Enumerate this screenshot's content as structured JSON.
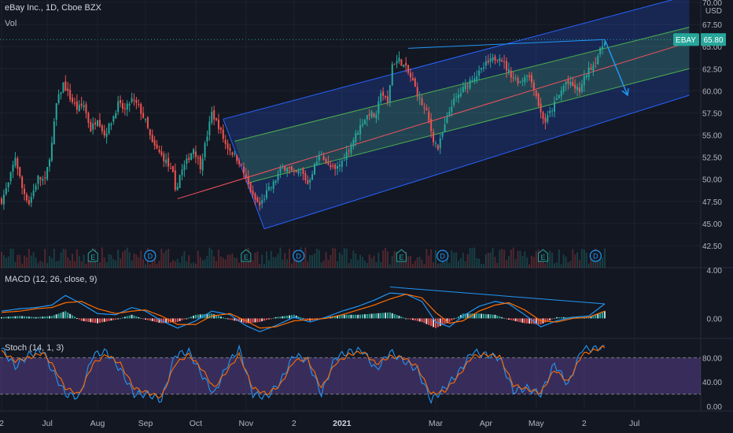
{
  "header": {
    "title": "eBay Inc., 1D, Cboe BZX",
    "vol_label": "Vol"
  },
  "price_axis": {
    "currency": "USD"
  },
  "last_price": {
    "symbol": "EBAY",
    "value": "65.80",
    "level": 65.8
  },
  "colors": {
    "background": "#131722",
    "up": "#26a69a",
    "down": "#ef5350",
    "grid": "#1e222d",
    "axis_text": "#b2b5be",
    "channel_blue": "#2962ff",
    "channel_green": "#4caf50",
    "channel_mid": "#f7525f",
    "macd_line": "#2196f3",
    "signal_line": "#ff6d00",
    "stoch_fill": "#7e57c2",
    "arrow": "#2196f3"
  },
  "markers": {
    "earnings": "E",
    "dividend": "D"
  },
  "chart_data": [
    {
      "type": "candlestick",
      "name": "price",
      "ylim": [
        41.5,
        70.5
      ],
      "y_ticks": [
        "42.50",
        "45.00",
        "47.50",
        "50.00",
        "52.50",
        "55.00",
        "57.50",
        "60.00",
        "62.50",
        "65.00",
        "67.50",
        "70.00"
      ],
      "x_ticks": [
        "2",
        "Jul",
        "Aug",
        "Sep",
        "Oct",
        "Nov",
        "2",
        "2021",
        "Mar",
        "Apr",
        "May",
        "2",
        "Jul"
      ],
      "x_tick_bold": [
        false,
        false,
        false,
        false,
        false,
        false,
        false,
        true,
        false,
        false,
        false,
        false,
        false
      ],
      "x_tick_index": [
        0,
        20,
        42,
        63,
        85,
        107,
        128,
        149,
        190,
        212,
        234,
        255,
        277
      ],
      "bar_count": 302,
      "anchors": [
        [
          0,
          47.6
        ],
        [
          3,
          49.5
        ],
        [
          6,
          52.5
        ],
        [
          9,
          49.0
        ],
        [
          12,
          47.3
        ],
        [
          16,
          50.2
        ],
        [
          19,
          49.8
        ],
        [
          22,
          54.0
        ],
        [
          24,
          58.5
        ],
        [
          27,
          60.8
        ],
        [
          30,
          59.2
        ],
        [
          33,
          58.0
        ],
        [
          36,
          58.4
        ],
        [
          39,
          55.6
        ],
        [
          42,
          57.0
        ],
        [
          45,
          55.0
        ],
        [
          48,
          56.5
        ],
        [
          51,
          58.5
        ],
        [
          54,
          57.8
        ],
        [
          57,
          59.0
        ],
        [
          60,
          58.2
        ],
        [
          63,
          56.5
        ],
        [
          66,
          54.0
        ],
        [
          69,
          53.0
        ],
        [
          72,
          52.0
        ],
        [
          75,
          50.5
        ],
        [
          76,
          48.5
        ],
        [
          78,
          50.5
        ],
        [
          81,
          52.0
        ],
        [
          84,
          53.5
        ],
        [
          87,
          51.5
        ],
        [
          90,
          55.0
        ],
        [
          92,
          57.5
        ],
        [
          95,
          56.0
        ],
        [
          98,
          54.0
        ],
        [
          101,
          53.0
        ],
        [
          104,
          52.0
        ],
        [
          107,
          50.0
        ],
        [
          110,
          48.0
        ],
        [
          113,
          47.0
        ],
        [
          116,
          48.5
        ],
        [
          119,
          49.5
        ],
        [
          122,
          51.0
        ],
        [
          125,
          51.5
        ],
        [
          128,
          50.5
        ],
        [
          131,
          51.0
        ],
        [
          134,
          49.5
        ],
        [
          137,
          51.5
        ],
        [
          140,
          53.0
        ],
        [
          143,
          51.5
        ],
        [
          146,
          51.0
        ],
        [
          149,
          52.0
        ],
        [
          152,
          53.5
        ],
        [
          155,
          55.0
        ],
        [
          158,
          56.5
        ],
        [
          161,
          57.5
        ],
        [
          164,
          57.0
        ],
        [
          166,
          60.0
        ],
        [
          169,
          58.5
        ],
        [
          171,
          63.0
        ],
        [
          174,
          63.5
        ],
        [
          177,
          62.5
        ],
        [
          180,
          61.0
        ],
        [
          183,
          59.0
        ],
        [
          186,
          57.5
        ],
        [
          189,
          54.5
        ],
        [
          191,
          53.5
        ],
        [
          194,
          56.0
        ],
        [
          197,
          58.5
        ],
        [
          200,
          59.5
        ],
        [
          203,
          60.5
        ],
        [
          206,
          61.5
        ],
        [
          209,
          62.0
        ],
        [
          212,
          63.0
        ],
        [
          215,
          63.5
        ],
        [
          218,
          64.0
        ],
        [
          221,
          62.5
        ],
        [
          224,
          61.5
        ],
        [
          227,
          61.0
        ],
        [
          230,
          62.0
        ],
        [
          233,
          60.5
        ],
        [
          236,
          57.5
        ],
        [
          238,
          56.5
        ],
        [
          241,
          58.0
        ],
        [
          244,
          59.5
        ],
        [
          247,
          61.0
        ],
        [
          250,
          60.5
        ],
        [
          253,
          60.0
        ],
        [
          256,
          62.0
        ],
        [
          259,
          63.0
        ],
        [
          262,
          64.5
        ],
        [
          264,
          65.8
        ]
      ],
      "channel_outer_upper": [
        [
          97,
          56.8
        ],
        [
          301,
          70.8
        ]
      ],
      "channel_outer_lower": [
        [
          115,
          44.4
        ],
        [
          301,
          59.5
        ]
      ],
      "channel_inner_upper": [
        [
          102,
          54.3
        ],
        [
          301,
          67.2
        ]
      ],
      "channel_inner_lower": [
        [
          108,
          49.6
        ],
        [
          301,
          62.5
        ]
      ],
      "channel_mid": [
        [
          77,
          47.8
        ],
        [
          301,
          65.5
        ]
      ],
      "trend_line": [
        [
          178,
          64.8
        ],
        [
          264,
          65.8
        ]
      ],
      "arrow": [
        [
          264,
          65.8
        ],
        [
          274,
          59.5
        ]
      ],
      "earnings_x": [
        40,
        107,
        175,
        237
      ],
      "dividend_x": [
        65,
        130,
        193,
        260
      ]
    },
    {
      "type": "line",
      "name": "MACD (12, 26, close, 9)",
      "ylim": [
        -1.6,
        4.0
      ],
      "y_ticks": [
        "4.00",
        "0.00"
      ],
      "macd": [
        [
          0,
          0.6
        ],
        [
          8,
          0.8
        ],
        [
          15,
          0.9
        ],
        [
          22,
          1.1
        ],
        [
          28,
          1.9
        ],
        [
          35,
          1.2
        ],
        [
          42,
          0.4
        ],
        [
          50,
          0.3
        ],
        [
          57,
          0.9
        ],
        [
          63,
          0.6
        ],
        [
          70,
          -0.2
        ],
        [
          77,
          -0.8
        ],
        [
          85,
          -0.2
        ],
        [
          92,
          0.6
        ],
        [
          100,
          0.3
        ],
        [
          107,
          -0.6
        ],
        [
          113,
          -1.1
        ],
        [
          120,
          -0.6
        ],
        [
          128,
          0.1
        ],
        [
          135,
          -0.3
        ],
        [
          142,
          0.1
        ],
        [
          149,
          0.6
        ],
        [
          156,
          1.0
        ],
        [
          163,
          1.5
        ],
        [
          170,
          2.1
        ],
        [
          177,
          2.0
        ],
        [
          184,
          1.4
        ],
        [
          190,
          -0.3
        ],
        [
          196,
          -0.7
        ],
        [
          202,
          0.2
        ],
        [
          209,
          1.0
        ],
        [
          216,
          1.4
        ],
        [
          222,
          1.2
        ],
        [
          229,
          0.3
        ],
        [
          236,
          -0.7
        ],
        [
          243,
          -0.2
        ],
        [
          250,
          0.1
        ],
        [
          257,
          0.2
        ],
        [
          264,
          1.2
        ]
      ],
      "signal": [
        [
          0,
          0.5
        ],
        [
          8,
          0.6
        ],
        [
          15,
          0.8
        ],
        [
          22,
          0.9
        ],
        [
          28,
          1.3
        ],
        [
          35,
          1.4
        ],
        [
          42,
          0.8
        ],
        [
          50,
          0.4
        ],
        [
          57,
          0.6
        ],
        [
          63,
          0.7
        ],
        [
          70,
          0.2
        ],
        [
          77,
          -0.5
        ],
        [
          85,
          -0.5
        ],
        [
          92,
          0.2
        ],
        [
          100,
          0.4
        ],
        [
          107,
          -0.2
        ],
        [
          113,
          -0.8
        ],
        [
          120,
          -0.7
        ],
        [
          128,
          -0.2
        ],
        [
          135,
          -0.1
        ],
        [
          142,
          0.0
        ],
        [
          149,
          0.3
        ],
        [
          156,
          0.7
        ],
        [
          163,
          1.1
        ],
        [
          170,
          1.6
        ],
        [
          177,
          2.0
        ],
        [
          184,
          1.7
        ],
        [
          190,
          0.5
        ],
        [
          196,
          -0.4
        ],
        [
          202,
          -0.2
        ],
        [
          209,
          0.6
        ],
        [
          216,
          1.1
        ],
        [
          222,
          1.3
        ],
        [
          229,
          0.7
        ],
        [
          236,
          -0.2
        ],
        [
          243,
          -0.3
        ],
        [
          250,
          0.0
        ],
        [
          257,
          0.1
        ],
        [
          264,
          0.6
        ]
      ],
      "divergence_line": [
        [
          170,
          2.6
        ],
        [
          264,
          1.2
        ]
      ]
    },
    {
      "type": "line",
      "name": "Stoch (14, 1, 3)",
      "ylim": [
        -8,
        110
      ],
      "y_ticks": [
        "80.00",
        "40.00",
        "0.00"
      ],
      "bands": [
        20,
        80
      ],
      "k": [
        [
          0,
          95
        ],
        [
          6,
          65
        ],
        [
          12,
          85
        ],
        [
          18,
          92
        ],
        [
          22,
          60
        ],
        [
          28,
          20
        ],
        [
          34,
          15
        ],
        [
          40,
          85
        ],
        [
          46,
          90
        ],
        [
          52,
          60
        ],
        [
          58,
          20
        ],
        [
          64,
          20
        ],
        [
          70,
          10
        ],
        [
          76,
          85
        ],
        [
          82,
          90
        ],
        [
          88,
          50
        ],
        [
          93,
          20
        ],
        [
          99,
          70
        ],
        [
          104,
          95
        ],
        [
          110,
          20
        ],
        [
          116,
          15
        ],
        [
          122,
          40
        ],
        [
          128,
          85
        ],
        [
          134,
          75
        ],
        [
          140,
          20
        ],
        [
          146,
          80
        ],
        [
          152,
          90
        ],
        [
          158,
          92
        ],
        [
          164,
          60
        ],
        [
          170,
          90
        ],
        [
          176,
          75
        ],
        [
          182,
          60
        ],
        [
          188,
          10
        ],
        [
          194,
          30
        ],
        [
          200,
          55
        ],
        [
          206,
          90
        ],
        [
          212,
          85
        ],
        [
          218,
          80
        ],
        [
          224,
          25
        ],
        [
          230,
          30
        ],
        [
          236,
          20
        ],
        [
          242,
          70
        ],
        [
          248,
          35
        ],
        [
          254,
          95
        ],
        [
          260,
          95
        ],
        [
          264,
          100
        ]
      ],
      "d": [
        [
          0,
          90
        ],
        [
          6,
          75
        ],
        [
          12,
          80
        ],
        [
          18,
          88
        ],
        [
          22,
          70
        ],
        [
          28,
          30
        ],
        [
          34,
          20
        ],
        [
          40,
          70
        ],
        [
          46,
          85
        ],
        [
          52,
          70
        ],
        [
          58,
          30
        ],
        [
          64,
          22
        ],
        [
          70,
          15
        ],
        [
          76,
          70
        ],
        [
          82,
          85
        ],
        [
          88,
          60
        ],
        [
          93,
          30
        ],
        [
          99,
          60
        ],
        [
          104,
          85
        ],
        [
          110,
          30
        ],
        [
          116,
          20
        ],
        [
          122,
          35
        ],
        [
          128,
          75
        ],
        [
          134,
          78
        ],
        [
          140,
          30
        ],
        [
          146,
          70
        ],
        [
          152,
          85
        ],
        [
          158,
          90
        ],
        [
          164,
          70
        ],
        [
          170,
          82
        ],
        [
          176,
          80
        ],
        [
          182,
          65
        ],
        [
          188,
          20
        ],
        [
          194,
          25
        ],
        [
          200,
          50
        ],
        [
          206,
          82
        ],
        [
          212,
          85
        ],
        [
          218,
          82
        ],
        [
          224,
          35
        ],
        [
          230,
          28
        ],
        [
          236,
          22
        ],
        [
          242,
          60
        ],
        [
          248,
          40
        ],
        [
          254,
          85
        ],
        [
          260,
          93
        ],
        [
          264,
          98
        ]
      ]
    }
  ]
}
